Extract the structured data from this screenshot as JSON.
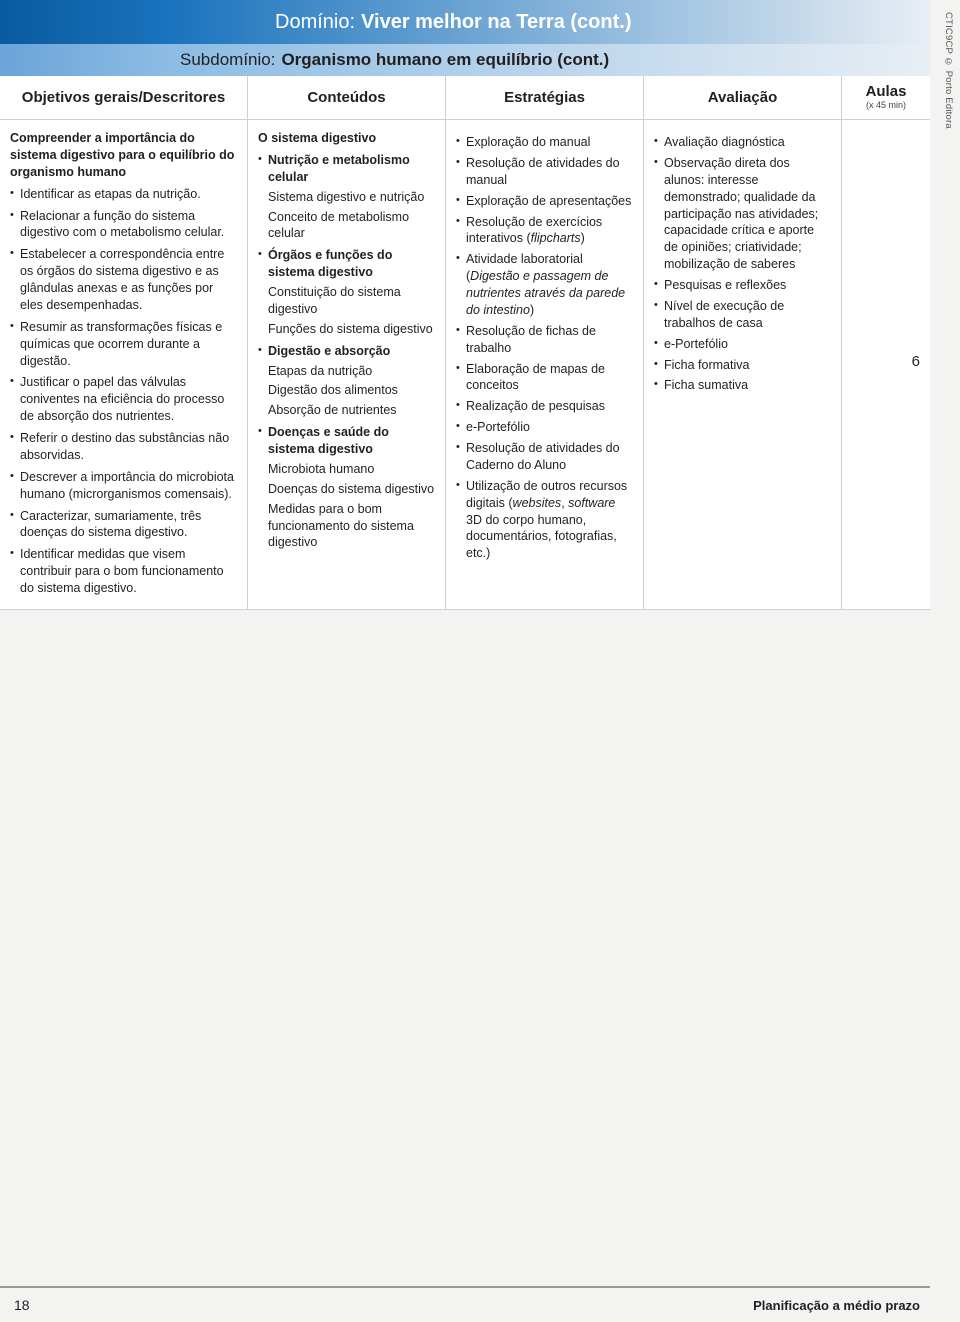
{
  "side_text": "CTIC9CP © Porto Editora",
  "title": {
    "label": "Domínio:",
    "text": "Viver melhor na Terra (cont.)"
  },
  "subtitle": {
    "label": "Subdomínio:",
    "text": "Organismo humano em equilíbrio (cont.)"
  },
  "headers": {
    "col1": "Objetivos gerais/Descritores",
    "col2": "Conteúdos",
    "col3": "Estratégias",
    "col4": "Avaliação",
    "col5": "Aulas",
    "col5_sub": "(x 45 min)"
  },
  "aulas_count": "6",
  "objetivos": {
    "lead": "Compreender a importância do sistema digestivo para o equilíbrio do organismo humano",
    "items": [
      "Identificar as etapas da nutrição.",
      "Relacionar a função do sistema digestivo com o metabolismo celular.",
      "Estabelecer a correspondência entre os órgãos do sistema digestivo e as glândulas anexas e as funções por eles desempenhadas.",
      "Resumir as transformações físicas e químicas que ocorrem durante a digestão.",
      "Justificar o papel das válvulas coniventes na eficiência do processo de absorção dos nutrientes.",
      "Referir o destino das substâncias não absorvidas.",
      "Descrever a importância do microbiota humano (microrganismos comensais).",
      "Caracterizar, sumariamente, três doenças do sistema digestivo.",
      "Identificar medidas que visem contribuir para o bom funcionamento do sistema digestivo."
    ]
  },
  "conteudos": {
    "top": "O sistema digestivo",
    "groups": [
      {
        "title": "Nutrição e metabolismo celular",
        "subs": [
          "Sistema digestivo e nutrição",
          "Conceito de metabolismo celular"
        ]
      },
      {
        "title": "Órgãos e funções do sistema digestivo",
        "subs": [
          "Constituição do sistema digestivo",
          "Funções do sistema digestivo"
        ]
      },
      {
        "title": "Digestão e absorção",
        "subs": [
          "Etapas da nutrição",
          "Digestão dos alimentos",
          "Absorção de nutrientes"
        ]
      },
      {
        "title": "Doenças e saúde do sistema digestivo",
        "subs": [
          "Microbiota humano",
          "Doenças do sistema digestivo",
          "Medidas para o bom funcionamento do sistema digestivo"
        ]
      }
    ]
  },
  "estrategias": [
    {
      "text": "Exploração do manual"
    },
    {
      "text": "Resolução de atividades do manual"
    },
    {
      "text": "Exploração de apresentações"
    },
    {
      "text_pre": "Resolução de exercícios interativos (",
      "italic": "flipcharts",
      "text_post": ")"
    },
    {
      "text_pre": "Atividade laboratorial (",
      "italic": "Digestão e passagem de nutrientes através da parede do intestino",
      "text_post": ")"
    },
    {
      "text": "Resolução de fichas de trabalho"
    },
    {
      "text": "Elaboração de mapas de conceitos"
    },
    {
      "text": "Realização de pesquisas"
    },
    {
      "text": "e-Portefólio"
    },
    {
      "text": "Resolução de atividades do Caderno do Aluno"
    },
    {
      "text_pre": "Utilização de outros recursos digitais (",
      "italic": "websites",
      "mid": ", ",
      "italic2": "software",
      "text_post": " 3D do corpo humano, documentários, fotografias, etc.)"
    }
  ],
  "avaliacao": [
    "Avaliação diagnóstica",
    "Observação direta dos alunos: interesse demonstrado; qualidade da participação nas atividades; capacidade crítica e aporte de opiniões; criatividade; mobilização de saberes",
    "Pesquisas e reflexões",
    "Nível de execução de trabalhos de casa",
    "e-Portefólio",
    "Ficha formativa",
    "Ficha sumativa"
  ],
  "footer": {
    "page": "18",
    "title": "Planificação a médio prazo"
  }
}
